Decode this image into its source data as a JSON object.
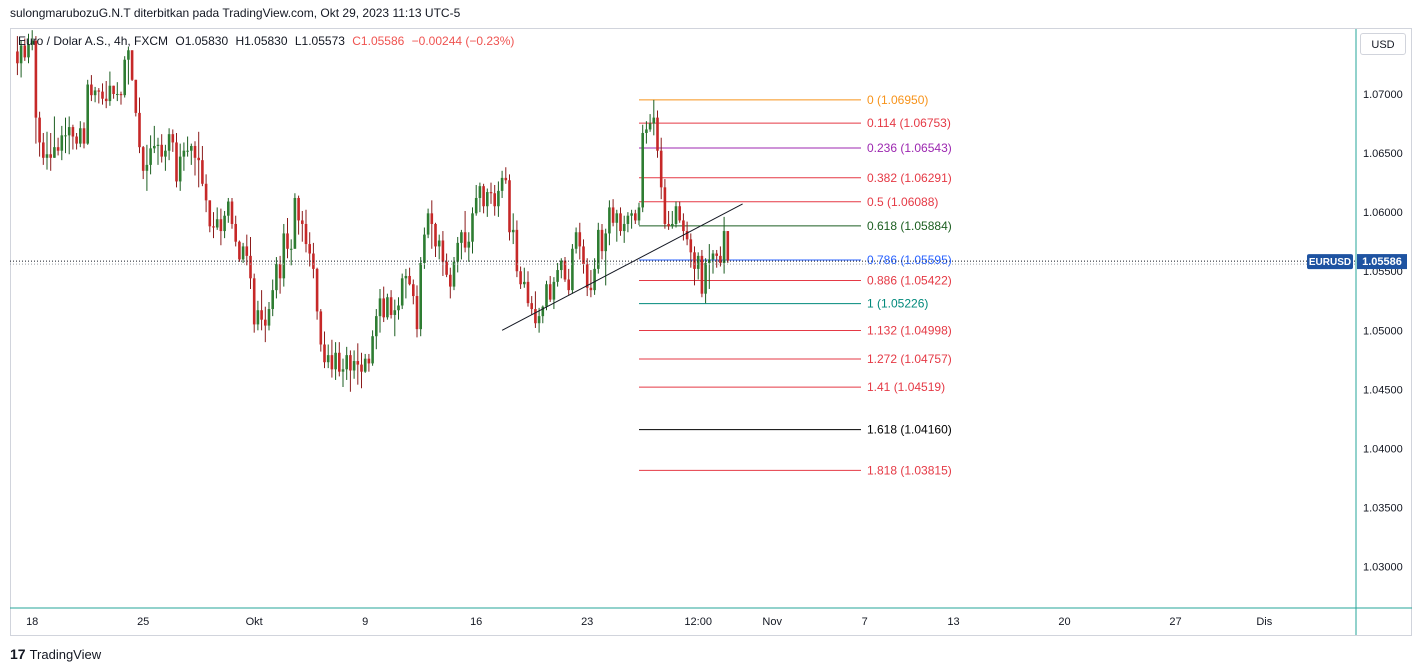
{
  "header": {
    "text": "sulongmarubozuG.N.T diterbitkan pada TradingView.com, Okt 29, 2023 11:13 UTC-5"
  },
  "legend": {
    "symbol": "Euro / Dolar A.S., 4h, FXCM",
    "open": "O1.05830",
    "high": "H1.05830",
    "low": "L1.05573",
    "close": "C1.05586",
    "change": "−0.00244 (−0.23%)"
  },
  "price_axis": {
    "currency": "USD"
  },
  "last_price": {
    "ticker": "EURUSD",
    "value": "1.05586"
  },
  "footer": {
    "logo": "17",
    "brand": "TradingView"
  },
  "colors": {
    "up": "#26a69a",
    "down": "#ef5350",
    "candle_dark": "#2e4a2e",
    "candle_red_dark": "#8b1a1a",
    "accent": "#1e53a1"
  },
  "chart_data": {
    "type": "candlestick",
    "symbol": "EURUSD",
    "timeframe": "4h",
    "ylim": [
      1.0265,
      1.0755
    ],
    "y_ticks": [
      "1.07000",
      "1.06500",
      "1.06000",
      "1.05500",
      "1.05000",
      "1.04500",
      "1.04000",
      "1.03500",
      "1.03000"
    ],
    "y_tick_values": [
      1.07,
      1.065,
      1.06,
      1.055,
      1.05,
      1.045,
      1.04,
      1.035,
      1.03
    ],
    "x_ticks": [
      "18",
      "25",
      "Okt",
      "9",
      "16",
      "23",
      "12:00",
      "Nov",
      "7",
      "13",
      "20",
      "27",
      "Dis"
    ],
    "x_tick_index": [
      6,
      36,
      66,
      96,
      126,
      156,
      186,
      206,
      231,
      255,
      285,
      315,
      339
    ],
    "fib_levels": [
      {
        "label": "0 (1.06950)",
        "value": 1.0695,
        "color": "#f7931a"
      },
      {
        "label": "0.114 (1.06753)",
        "value": 1.06753,
        "color": "#e53945"
      },
      {
        "label": "0.236 (1.06543)",
        "value": 1.06543,
        "color": "#9c27b0"
      },
      {
        "label": "0.382 (1.06291)",
        "value": 1.06291,
        "color": "#e53945"
      },
      {
        "label": "0.5 (1.06088)",
        "value": 1.06088,
        "color": "#e53945"
      },
      {
        "label": "0.618 (1.05884)",
        "value": 1.05884,
        "color": "#1b5e20"
      },
      {
        "label": "0.786 (1.05595)",
        "value": 1.05595,
        "color": "#2962ff"
      },
      {
        "label": "0.886 (1.05422)",
        "value": 1.05422,
        "color": "#e53945"
      },
      {
        "label": "1 (1.05226)",
        "value": 1.05226,
        "color": "#00897b"
      },
      {
        "label": "1.132 (1.04998)",
        "value": 1.04998,
        "color": "#e53945"
      },
      {
        "label": "1.272 (1.04757)",
        "value": 1.04757,
        "color": "#e53945"
      },
      {
        "label": "1.41 (1.04519)",
        "value": 1.04519,
        "color": "#e53945"
      },
      {
        "label": "1.618 (1.04160)",
        "value": 1.0416,
        "color": "#000000"
      },
      {
        "label": "1.818 (1.03815)",
        "value": 1.03815,
        "color": "#e53945"
      }
    ],
    "fib_range": {
      "start_index": 170,
      "end_index": 230
    },
    "trendline": {
      "from": {
        "index": 133,
        "price": 1.05
      },
      "to": {
        "index": 198,
        "price": 1.0607
      }
    },
    "last_price_line": 1.05586,
    "candle_start_index": 2,
    "candles": [
      [
        1.0736,
        1.0749,
        1.0716,
        1.0726
      ],
      [
        1.0726,
        1.0745,
        1.0714,
        1.0741
      ],
      [
        1.0741,
        1.0747,
        1.0728,
        1.0731
      ],
      [
        1.0731,
        1.0751,
        1.0726,
        1.0742
      ],
      [
        1.0742,
        1.0754,
        1.0737,
        1.0745
      ],
      [
        1.0745,
        1.0749,
        1.0658,
        1.068
      ],
      [
        1.068,
        1.0685,
        1.0647,
        1.0659
      ],
      [
        1.0659,
        1.0667,
        1.064,
        1.0646
      ],
      [
        1.0646,
        1.0668,
        1.0636,
        1.0649
      ],
      [
        1.0649,
        1.0667,
        1.0635,
        1.0646
      ],
      [
        1.0646,
        1.0681,
        1.0646,
        1.0655
      ],
      [
        1.0655,
        1.0663,
        1.0648,
        1.0652
      ],
      [
        1.0652,
        1.0673,
        1.0644,
        1.0665
      ],
      [
        1.0665,
        1.068,
        1.065,
        1.0665
      ],
      [
        1.0665,
        1.0681,
        1.0649,
        1.0672
      ],
      [
        1.0672,
        1.0674,
        1.0653,
        1.0664
      ],
      [
        1.0664,
        1.0667,
        1.0653,
        1.0658
      ],
      [
        1.0658,
        1.0677,
        1.0655,
        1.0671
      ],
      [
        1.0671,
        1.0676,
        1.0654,
        1.0658
      ],
      [
        1.0658,
        1.0712,
        1.0657,
        1.0708
      ],
      [
        1.0708,
        1.0716,
        1.0694,
        1.0699
      ],
      [
        1.0699,
        1.0706,
        1.0693,
        1.0703
      ],
      [
        1.0703,
        1.0705,
        1.0692,
        1.0702
      ],
      [
        1.0702,
        1.0709,
        1.0691,
        1.0696
      ],
      [
        1.0696,
        1.0711,
        1.0688,
        1.0694
      ],
      [
        1.0694,
        1.0719,
        1.069,
        1.0707
      ],
      [
        1.0707,
        1.0707,
        1.0696,
        1.07
      ],
      [
        1.07,
        1.071,
        1.0694,
        1.07
      ],
      [
        1.07,
        1.0702,
        1.0691,
        1.0699
      ],
      [
        1.0699,
        1.0732,
        1.0697,
        1.0729
      ],
      [
        1.0729,
        1.074,
        1.0708,
        1.0737
      ],
      [
        1.0737,
        1.0737,
        1.0711,
        1.0712
      ],
      [
        1.0712,
        1.0712,
        1.0681,
        1.0684
      ],
      [
        1.0684,
        1.0697,
        1.065,
        1.0655
      ],
      [
        1.0655,
        1.0656,
        1.0628,
        1.0635
      ],
      [
        1.0635,
        1.0657,
        1.0618,
        1.064
      ],
      [
        1.064,
        1.0665,
        1.0632,
        1.0654
      ],
      [
        1.0654,
        1.0673,
        1.065,
        1.0656
      ],
      [
        1.0656,
        1.0663,
        1.064,
        1.0657
      ],
      [
        1.0657,
        1.0666,
        1.0642,
        1.0647
      ],
      [
        1.0647,
        1.0657,
        1.0635,
        1.0652
      ],
      [
        1.0652,
        1.0671,
        1.0644,
        1.0666
      ],
      [
        1.0666,
        1.067,
        1.0651,
        1.0659
      ],
      [
        1.0659,
        1.0667,
        1.0621,
        1.0626
      ],
      [
        1.0626,
        1.0658,
        1.0618,
        1.0647
      ],
      [
        1.0647,
        1.0659,
        1.0635,
        1.0652
      ],
      [
        1.0652,
        1.0664,
        1.0647,
        1.0652
      ],
      [
        1.0652,
        1.0658,
        1.064,
        1.0656
      ],
      [
        1.0656,
        1.066,
        1.0631,
        1.0646
      ],
      [
        1.0646,
        1.0668,
        1.0621,
        1.0644
      ],
      [
        1.0644,
        1.0656,
        1.0622,
        1.0624
      ],
      [
        1.0624,
        1.0632,
        1.06,
        1.061
      ],
      [
        1.061,
        1.061,
        1.0583,
        1.0588
      ],
      [
        1.0588,
        1.06,
        1.0578,
        1.0587
      ],
      [
        1.0587,
        1.0604,
        1.0585,
        1.0594
      ],
      [
        1.0594,
        1.0603,
        1.0572,
        1.0584
      ],
      [
        1.0584,
        1.0601,
        1.0578,
        1.0597
      ],
      [
        1.0597,
        1.0612,
        1.0591,
        1.0609
      ],
      [
        1.0609,
        1.0612,
        1.0586,
        1.059
      ],
      [
        1.059,
        1.0597,
        1.0571,
        1.0575
      ],
      [
        1.0575,
        1.0576,
        1.0558,
        1.056
      ],
      [
        1.056,
        1.0574,
        1.0557,
        1.0571
      ],
      [
        1.0571,
        1.0581,
        1.0555,
        1.0563
      ],
      [
        1.0563,
        1.0579,
        1.0535,
        1.0544
      ],
      [
        1.0544,
        1.0548,
        1.0498,
        1.0505
      ],
      [
        1.0505,
        1.0525,
        1.05,
        1.0517
      ],
      [
        1.0517,
        1.0534,
        1.05,
        1.0509
      ],
      [
        1.0509,
        1.052,
        1.049,
        1.0504
      ],
      [
        1.0504,
        1.0524,
        1.05,
        1.0518
      ],
      [
        1.0518,
        1.0543,
        1.0512,
        1.0534
      ],
      [
        1.0534,
        1.0562,
        1.0527,
        1.0556
      ],
      [
        1.0556,
        1.0563,
        1.0531,
        1.0544
      ],
      [
        1.0544,
        1.059,
        1.0537,
        1.0582
      ],
      [
        1.0582,
        1.0595,
        1.0561,
        1.0569
      ],
      [
        1.0569,
        1.0577,
        1.0555,
        1.0569
      ],
      [
        1.0569,
        1.0616,
        1.0569,
        1.0612
      ],
      [
        1.0612,
        1.0614,
        1.0581,
        1.0593
      ],
      [
        1.0593,
        1.0601,
        1.0575,
        1.059
      ],
      [
        1.059,
        1.0602,
        1.0566,
        1.0573
      ],
      [
        1.0573,
        1.0583,
        1.0554,
        1.0565
      ],
      [
        1.0565,
        1.0574,
        1.0544,
        1.0552
      ],
      [
        1.0552,
        1.0553,
        1.0509,
        1.0516
      ],
      [
        1.0516,
        1.0518,
        1.0482,
        1.0488
      ],
      [
        1.0488,
        1.0499,
        1.0468,
        1.0473
      ],
      [
        1.0473,
        1.0488,
        1.0468,
        1.0479
      ],
      [
        1.0479,
        1.0492,
        1.046,
        1.0467
      ],
      [
        1.0467,
        1.049,
        1.0458,
        1.0481
      ],
      [
        1.0481,
        1.049,
        1.0461,
        1.0465
      ],
      [
        1.0465,
        1.0476,
        1.0452,
        1.0467
      ],
      [
        1.0467,
        1.0486,
        1.0458,
        1.0479
      ],
      [
        1.0479,
        1.0483,
        1.0448,
        1.0466
      ],
      [
        1.0466,
        1.0483,
        1.0459,
        1.0474
      ],
      [
        1.0474,
        1.0489,
        1.0454,
        1.0471
      ],
      [
        1.0471,
        1.0481,
        1.0451,
        1.0465
      ],
      [
        1.0465,
        1.048,
        1.0464,
        1.0476
      ],
      [
        1.0476,
        1.048,
        1.0465,
        1.0472
      ],
      [
        1.0472,
        1.05,
        1.047,
        1.0495
      ],
      [
        1.0495,
        1.0518,
        1.0484,
        1.0512
      ],
      [
        1.0512,
        1.0535,
        1.0498,
        1.0527
      ],
      [
        1.0527,
        1.0537,
        1.0507,
        1.0511
      ],
      [
        1.0511,
        1.0531,
        1.0509,
        1.0528
      ],
      [
        1.0528,
        1.0534,
        1.051,
        1.0513
      ],
      [
        1.0513,
        1.0526,
        1.0495,
        1.0517
      ],
      [
        1.0517,
        1.0528,
        1.0509,
        1.0521
      ],
      [
        1.0521,
        1.0548,
        1.0518,
        1.0544
      ],
      [
        1.0544,
        1.0552,
        1.0527,
        1.0546
      ],
      [
        1.0546,
        1.0553,
        1.0538,
        1.0539
      ],
      [
        1.0539,
        1.0543,
        1.0522,
        1.0529
      ],
      [
        1.0529,
        1.0538,
        1.0494,
        1.0501
      ],
      [
        1.0501,
        1.0562,
        1.0495,
        1.0557
      ],
      [
        1.0557,
        1.0587,
        1.0552,
        1.0581
      ],
      [
        1.0581,
        1.0603,
        1.0578,
        1.0599
      ],
      [
        1.0599,
        1.061,
        1.0569,
        1.059
      ],
      [
        1.059,
        1.0591,
        1.0562,
        1.0571
      ],
      [
        1.0571,
        1.0581,
        1.056,
        1.0576
      ],
      [
        1.0576,
        1.0584,
        1.0546,
        1.0558
      ],
      [
        1.0558,
        1.0565,
        1.0545,
        1.0547
      ],
      [
        1.0547,
        1.0553,
        1.0527,
        1.0537
      ],
      [
        1.0537,
        1.0562,
        1.0534,
        1.0558
      ],
      [
        1.0558,
        1.0579,
        1.0549,
        1.0574
      ],
      [
        1.0574,
        1.0585,
        1.056,
        1.0583
      ],
      [
        1.0583,
        1.0601,
        1.0566,
        1.057
      ],
      [
        1.057,
        1.0583,
        1.0558,
        1.0575
      ],
      [
        1.0575,
        1.0604,
        1.0565,
        1.0599
      ],
      [
        1.0599,
        1.0623,
        1.0597,
        1.0612
      ],
      [
        1.0612,
        1.0625,
        1.06,
        1.0622
      ],
      [
        1.0622,
        1.0624,
        1.0599,
        1.0605
      ],
      [
        1.0605,
        1.062,
        1.0596,
        1.0617
      ],
      [
        1.0617,
        1.0625,
        1.0607,
        1.0616
      ],
      [
        1.0616,
        1.0623,
        1.0597,
        1.0605
      ],
      [
        1.0605,
        1.0626,
        1.0596,
        1.0618
      ],
      [
        1.0618,
        1.0635,
        1.0612,
        1.0629
      ],
      [
        1.0629,
        1.0638,
        1.0624,
        1.0627
      ],
      [
        1.0627,
        1.0632,
        1.0576,
        1.0583
      ],
      [
        1.0583,
        1.0599,
        1.0573,
        1.0585
      ],
      [
        1.0585,
        1.0593,
        1.0545,
        1.055
      ],
      [
        1.055,
        1.0554,
        1.0535,
        1.0539
      ],
      [
        1.0539,
        1.0553,
        1.0536,
        1.0541
      ],
      [
        1.0541,
        1.055,
        1.052,
        1.0523
      ],
      [
        1.0523,
        1.0529,
        1.0513,
        1.0518
      ],
      [
        1.0518,
        1.0533,
        1.0502,
        1.0506
      ],
      [
        1.0506,
        1.0519,
        1.0498,
        1.0512
      ],
      [
        1.0512,
        1.0521,
        1.0506,
        1.052
      ],
      [
        1.052,
        1.0542,
        1.0517,
        1.0539
      ],
      [
        1.0539,
        1.0546,
        1.0524,
        1.0526
      ],
      [
        1.0526,
        1.0545,
        1.0518,
        1.0541
      ],
      [
        1.0541,
        1.0557,
        1.0537,
        1.0551
      ],
      [
        1.0551,
        1.0561,
        1.0544,
        1.0559
      ],
      [
        1.0559,
        1.0562,
        1.0541,
        1.0543
      ],
      [
        1.0543,
        1.0552,
        1.053,
        1.0534
      ],
      [
        1.0534,
        1.0573,
        1.0531,
        1.0569
      ],
      [
        1.0569,
        1.0587,
        1.0565,
        1.0583
      ],
      [
        1.0583,
        1.0591,
        1.056,
        1.0571
      ],
      [
        1.0571,
        1.0577,
        1.0548,
        1.0556
      ],
      [
        1.0556,
        1.0561,
        1.0529,
        1.0536
      ],
      [
        1.0536,
        1.0551,
        1.0528,
        1.0534
      ],
      [
        1.0534,
        1.0561,
        1.053,
        1.0552
      ],
      [
        1.0552,
        1.0591,
        1.0548,
        1.0585
      ],
      [
        1.0585,
        1.059,
        1.056,
        1.0567
      ],
      [
        1.0567,
        1.0586,
        1.0538,
        1.0582
      ],
      [
        1.0582,
        1.061,
        1.0572,
        1.0604
      ],
      [
        1.0604,
        1.0611,
        1.0588,
        1.0591
      ],
      [
        1.0591,
        1.0602,
        1.0575,
        1.0599
      ],
      [
        1.0599,
        1.0604,
        1.058,
        1.0584
      ],
      [
        1.0584,
        1.0597,
        1.0574,
        1.059
      ],
      [
        1.059,
        1.06,
        1.0583,
        1.0597
      ],
      [
        1.0597,
        1.0602,
        1.0586,
        1.0599
      ],
      [
        1.0599,
        1.0602,
        1.059,
        1.0593
      ],
      [
        1.0593,
        1.0608,
        1.0589,
        1.0604
      ],
      [
        1.0604,
        1.0674,
        1.06,
        1.0667
      ],
      [
        1.0667,
        1.0677,
        1.0658,
        1.067
      ],
      [
        1.067,
        1.0683,
        1.0668,
        1.0675
      ],
      [
        1.0675,
        1.0695,
        1.0665,
        1.068
      ],
      [
        1.068,
        1.0686,
        1.0646,
        1.0652
      ],
      [
        1.0652,
        1.0663,
        1.0611,
        1.0621
      ],
      [
        1.0621,
        1.0628,
        1.0586,
        1.059
      ],
      [
        1.059,
        1.0601,
        1.0585,
        1.0588
      ],
      [
        1.0588,
        1.0601,
        1.0586,
        1.059
      ],
      [
        1.059,
        1.0609,
        1.0587,
        1.0605
      ],
      [
        1.0605,
        1.0609,
        1.0591,
        1.0593
      ],
      [
        1.0593,
        1.0599,
        1.0576,
        1.0584
      ],
      [
        1.0584,
        1.0592,
        1.0572,
        1.0577
      ],
      [
        1.0577,
        1.0582,
        1.0553,
        1.0566
      ],
      [
        1.0566,
        1.0571,
        1.0538,
        1.0552
      ],
      [
        1.0552,
        1.0566,
        1.0543,
        1.0563
      ],
      [
        1.0563,
        1.0568,
        1.0528,
        1.0531
      ],
      [
        1.0531,
        1.0561,
        1.0523,
        1.0557
      ],
      [
        1.0557,
        1.0573,
        1.0535,
        1.056
      ],
      [
        1.056,
        1.0568,
        1.0548,
        1.0565
      ],
      [
        1.0565,
        1.0568,
        1.0553,
        1.0563
      ],
      [
        1.0563,
        1.0571,
        1.0554,
        1.0557
      ],
      [
        1.0557,
        1.0596,
        1.0548,
        1.0584
      ],
      [
        1.0584,
        1.0584,
        1.0557,
        1.0559
      ]
    ]
  }
}
